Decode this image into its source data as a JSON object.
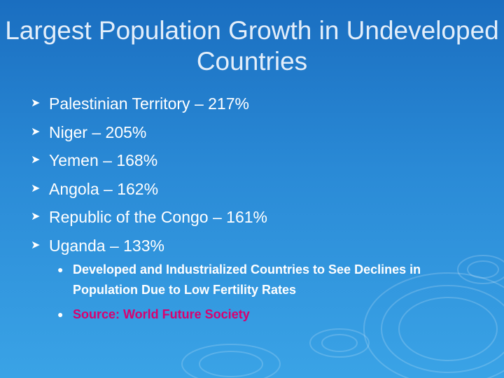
{
  "title": "Largest Population Growth in Undeveloped Countries",
  "bullets": [
    {
      "text": "Palestinian Territory – 217%"
    },
    {
      "text": "Niger – 205%"
    },
    {
      "text": "Yemen – 168%"
    },
    {
      "text": "Angola – 162%"
    },
    {
      "text": "Republic of the Congo – 161%"
    },
    {
      "text": "Uganda – 133%"
    }
  ],
  "sub_bullets": [
    {
      "text": "Developed and Industrialized Countries to See Declines in Population Due to Low Fertility Rates"
    },
    {
      "text": "Source:  World Future Society"
    }
  ],
  "colors": {
    "background": "#2a8ad6",
    "title": "#e3eefa",
    "text": "#ffffff",
    "source": "#d9006f"
  },
  "icons": {
    "bullet": "arrow-bullet-icon",
    "sub_bullet": "dot-bullet-icon"
  }
}
